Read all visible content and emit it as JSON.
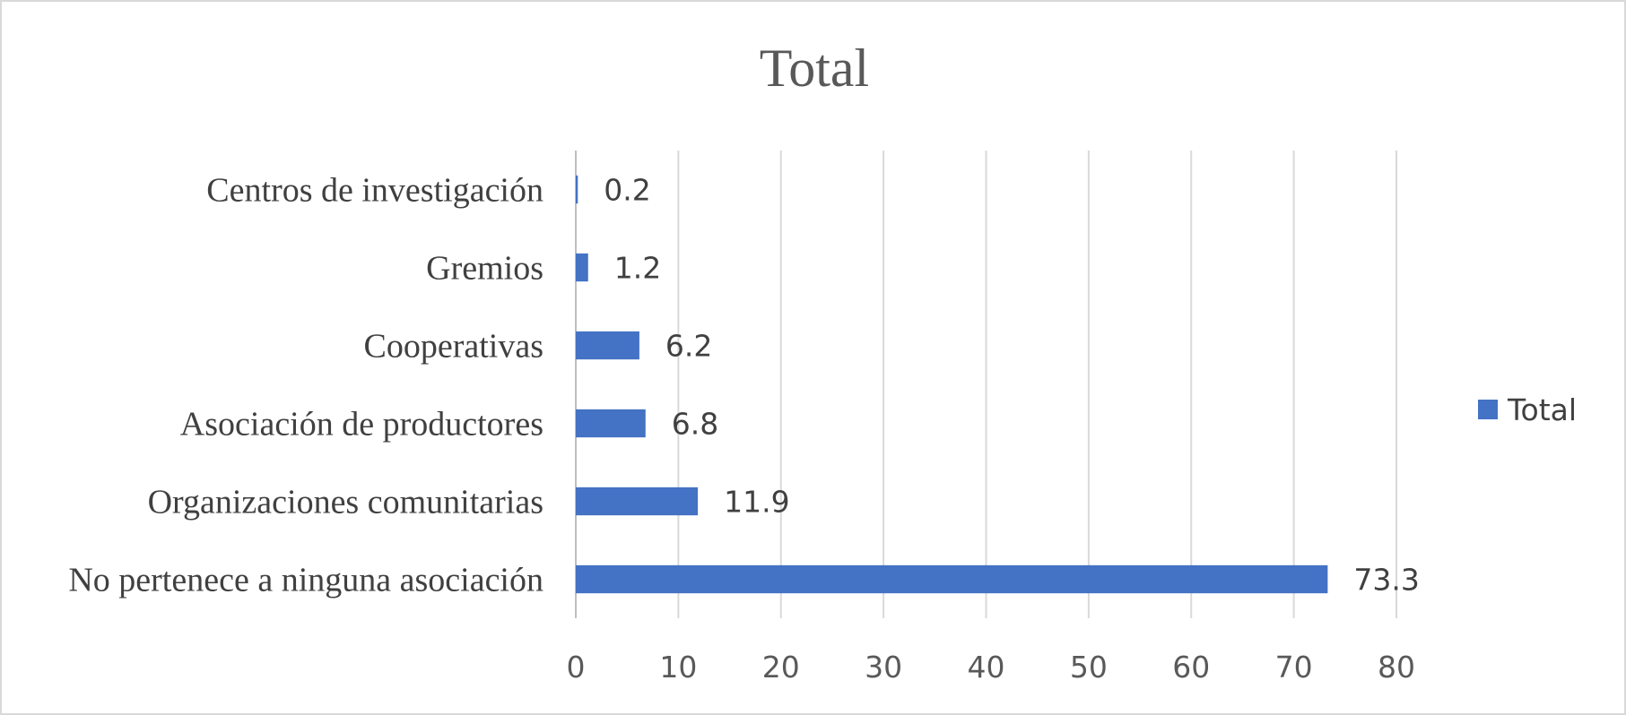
{
  "chart_data": {
    "type": "bar",
    "orientation": "horizontal",
    "title": "Total",
    "categories": [
      "No pertenece a ninguna asociación",
      "Organizaciones comunitarias",
      "Asociación de productores",
      "Cooperativas",
      "Gremios",
      "Centros de investigación"
    ],
    "series": [
      {
        "name": "Total",
        "values": [
          73.3,
          11.9,
          6.8,
          6.2,
          1.2,
          0.2
        ],
        "color": "#4472c4"
      }
    ],
    "data_labels": [
      "73.3",
      "11.9",
      "6.8",
      "6.2",
      "1.2",
      "0.2"
    ],
    "xlim": [
      0,
      80
    ],
    "xticks": [
      "0",
      "10",
      "20",
      "30",
      "40",
      "50",
      "60",
      "70",
      "80"
    ],
    "xlabel": "",
    "ylabel": "",
    "grid": "vertical",
    "legend": {
      "position": "right",
      "entries": [
        "Total"
      ]
    }
  }
}
